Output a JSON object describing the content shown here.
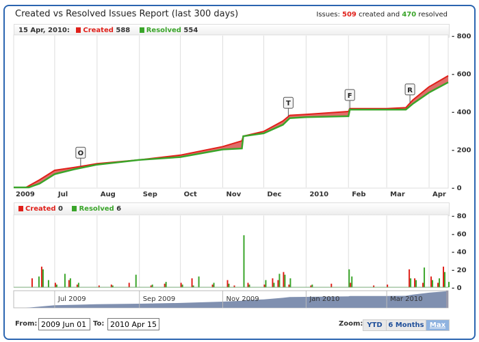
{
  "title": "Created vs Resolved Issues Report (last 300 days)",
  "summary": {
    "prefix": "Issues:",
    "created": "509",
    "middle": "created and",
    "resolved": "470",
    "suffix": "resolved"
  },
  "main_legend": {
    "date": "15 Apr, 2010:",
    "created_label": "Created",
    "created_value": "588",
    "resolved_label": "Resolved",
    "resolved_value": "554"
  },
  "bar_legend": {
    "created_label": "Created",
    "created_value": "0",
    "resolved_label": "Resolved",
    "resolved_value": "6"
  },
  "colors": {
    "created": "#e0201a",
    "resolved": "#3aa52a",
    "navigator": "#8090b0",
    "frame": "#2a64b0"
  },
  "range": {
    "from_label": "From:",
    "from": "2009 Jun 01",
    "to_label": "To:",
    "to": "2010 Apr 15"
  },
  "zoom": {
    "label": "Zoom:",
    "buttons": [
      "YTD",
      "6 Months",
      "Max"
    ],
    "selected": "Max"
  },
  "chart_data": [
    {
      "type": "area",
      "x_range": [
        "2009-06-01",
        "2010-04-15"
      ],
      "ylim": [
        0,
        800
      ],
      "yticks": [
        0,
        200,
        400,
        600,
        800
      ],
      "xticks": [
        {
          "date": "2009-06-01",
          "label": "2009"
        },
        {
          "date": "2009-07-01",
          "label": "Jul"
        },
        {
          "date": "2009-08-01",
          "label": "Aug"
        },
        {
          "date": "2009-09-01",
          "label": "Sep"
        },
        {
          "date": "2009-10-01",
          "label": "Oct"
        },
        {
          "date": "2009-11-01",
          "label": "Nov"
        },
        {
          "date": "2009-12-01",
          "label": "Dec"
        },
        {
          "date": "2010-01-01",
          "label": "2010"
        },
        {
          "date": "2010-02-01",
          "label": "Feb"
        },
        {
          "date": "2010-03-01",
          "label": "Mar"
        },
        {
          "date": "2010-04-01",
          "label": "Apr"
        }
      ],
      "series": [
        {
          "name": "Created",
          "points": [
            [
              "2009-06-01",
              0
            ],
            [
              "2009-06-10",
              0
            ],
            [
              "2009-06-20",
              40
            ],
            [
              "2009-07-01",
              90
            ],
            [
              "2009-07-15",
              105
            ],
            [
              "2009-08-01",
              125
            ],
            [
              "2009-09-01",
              145
            ],
            [
              "2009-10-01",
              170
            ],
            [
              "2009-11-01",
              215
            ],
            [
              "2009-11-15",
              245
            ],
            [
              "2009-11-16",
              270
            ],
            [
              "2009-12-01",
              295
            ],
            [
              "2009-12-15",
              350
            ],
            [
              "2009-12-20",
              380
            ],
            [
              "2010-01-01",
              385
            ],
            [
              "2010-02-01",
              400
            ],
            [
              "2010-02-02",
              415
            ],
            [
              "2010-03-01",
              415
            ],
            [
              "2010-03-15",
              420
            ],
            [
              "2010-03-20",
              460
            ],
            [
              "2010-04-01",
              530
            ],
            [
              "2010-04-15",
              588
            ]
          ]
        },
        {
          "name": "Resolved",
          "points": [
            [
              "2009-06-01",
              0
            ],
            [
              "2009-06-12",
              0
            ],
            [
              "2009-06-20",
              20
            ],
            [
              "2009-07-01",
              70
            ],
            [
              "2009-07-15",
              95
            ],
            [
              "2009-08-01",
              120
            ],
            [
              "2009-09-01",
              145
            ],
            [
              "2009-10-01",
              160
            ],
            [
              "2009-11-01",
              200
            ],
            [
              "2009-11-15",
              205
            ],
            [
              "2009-11-16",
              270
            ],
            [
              "2009-12-01",
              285
            ],
            [
              "2009-12-15",
              330
            ],
            [
              "2009-12-20",
              365
            ],
            [
              "2010-01-01",
              370
            ],
            [
              "2010-02-01",
              375
            ],
            [
              "2010-02-02",
              410
            ],
            [
              "2010-03-01",
              410
            ],
            [
              "2010-03-15",
              410
            ],
            [
              "2010-03-20",
              440
            ],
            [
              "2010-04-01",
              500
            ],
            [
              "2010-04-15",
              554
            ]
          ]
        }
      ],
      "flags": [
        {
          "date": "2009-07-20",
          "label": "O"
        },
        {
          "date": "2009-12-19",
          "label": "T"
        },
        {
          "date": "2010-02-02",
          "label": "F"
        },
        {
          "date": "2010-03-18",
          "label": "R"
        }
      ]
    },
    {
      "type": "bar",
      "ylim": [
        0,
        80
      ],
      "yticks": [
        0,
        20,
        40,
        60,
        80
      ],
      "bars": [
        [
          "2009-06-15",
          10,
          0
        ],
        [
          "2009-06-19",
          0,
          12
        ],
        [
          "2009-06-22",
          23,
          20
        ],
        [
          "2009-06-26",
          0,
          8
        ],
        [
          "2009-07-02",
          5,
          3
        ],
        [
          "2009-07-08",
          0,
          15
        ],
        [
          "2009-07-12",
          8,
          10
        ],
        [
          "2009-07-18",
          3,
          5
        ],
        [
          "2009-08-03",
          2,
          0
        ],
        [
          "2009-08-12",
          3,
          2
        ],
        [
          "2009-08-25",
          5,
          0
        ],
        [
          "2009-08-29",
          0,
          14
        ],
        [
          "2009-09-10",
          2,
          3
        ],
        [
          "2009-09-20",
          4,
          6
        ],
        [
          "2009-10-02",
          5,
          3
        ],
        [
          "2009-10-10",
          10,
          2
        ],
        [
          "2009-10-14",
          0,
          12
        ],
        [
          "2009-10-25",
          3,
          5
        ],
        [
          "2009-11-05",
          8,
          4
        ],
        [
          "2009-11-10",
          2,
          0
        ],
        [
          "2009-11-16",
          0,
          58
        ],
        [
          "2009-11-20",
          5,
          3
        ],
        [
          "2009-12-02",
          3,
          8
        ],
        [
          "2009-12-08",
          10,
          5
        ],
        [
          "2009-12-12",
          8,
          15
        ],
        [
          "2009-12-16",
          17,
          14
        ],
        [
          "2009-12-20",
          3,
          10
        ],
        [
          "2010-01-05",
          2,
          3
        ],
        [
          "2010-01-20",
          4,
          0
        ],
        [
          "2010-02-01",
          0,
          20
        ],
        [
          "2010-02-03",
          5,
          12
        ],
        [
          "2010-02-20",
          2,
          0
        ],
        [
          "2010-03-02",
          3,
          0
        ],
        [
          "2010-03-18",
          20,
          10
        ],
        [
          "2010-03-22",
          10,
          8
        ],
        [
          "2010-03-28",
          5,
          22
        ],
        [
          "2010-04-03",
          12,
          8
        ],
        [
          "2010-04-08",
          5,
          10
        ],
        [
          "2010-04-12",
          23,
          17
        ],
        [
          "2010-04-15",
          0,
          6
        ]
      ]
    },
    {
      "type": "area",
      "name": "navigator",
      "xticks": [
        {
          "date": "2009-07-01",
          "label": "Jul 2009"
        },
        {
          "date": "2009-09-01",
          "label": "Sep 2009"
        },
        {
          "date": "2009-11-01",
          "label": "Nov 2009"
        },
        {
          "date": "2010-01-01",
          "label": "Jan 2010"
        },
        {
          "date": "2010-03-01",
          "label": "Mar 2010"
        }
      ]
    }
  ]
}
